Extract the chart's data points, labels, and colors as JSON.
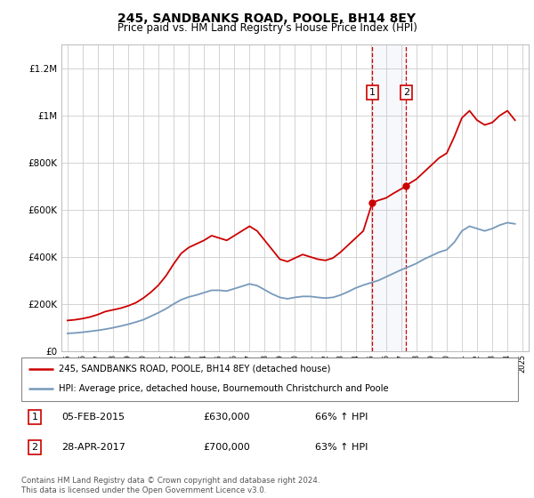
{
  "title": "245, SANDBANKS ROAD, POOLE, BH14 8EY",
  "subtitle": "Price paid vs. HM Land Registry's House Price Index (HPI)",
  "title_fontsize": 10,
  "subtitle_fontsize": 8.5,
  "ylim": [
    0,
    1300000
  ],
  "yticks": [
    0,
    200000,
    400000,
    600000,
    800000,
    1000000,
    1200000
  ],
  "ytick_labels": [
    "£0",
    "£200K",
    "£400K",
    "£600K",
    "£800K",
    "£1M",
    "£1.2M"
  ],
  "background_color": "#ffffff",
  "transactions": [
    {
      "date": 2015.09,
      "price": 630000,
      "label": "1"
    },
    {
      "date": 2017.32,
      "price": 700000,
      "label": "2"
    }
  ],
  "legend_entries": [
    {
      "label": "245, SANDBANKS ROAD, POOLE, BH14 8EY (detached house)",
      "color": "#cc0000"
    },
    {
      "label": "HPI: Average price, detached house, Bournemouth Christchurch and Poole",
      "color": "#7799bb"
    }
  ],
  "table_rows": [
    {
      "num": "1",
      "date": "05-FEB-2015",
      "price": "£630,000",
      "pct": "66% ↑ HPI"
    },
    {
      "num": "2",
      "date": "28-APR-2017",
      "price": "£700,000",
      "pct": "63% ↑ HPI"
    }
  ],
  "footnote": "Contains HM Land Registry data © Crown copyright and database right 2024.\nThis data is licensed under the Open Government Licence v3.0.",
  "red_line_x": [
    1995,
    1995.5,
    1996,
    1996.5,
    1997,
    1997.5,
    1998,
    1998.5,
    1999,
    1999.5,
    2000,
    2000.5,
    2001,
    2001.5,
    2002,
    2002.5,
    2003,
    2003.5,
    2004,
    2004.5,
    2005,
    2005.5,
    2006,
    2006.5,
    2007,
    2007.5,
    2008,
    2008.5,
    2009,
    2009.5,
    2010,
    2010.5,
    2011,
    2011.5,
    2012,
    2012.5,
    2013,
    2013.5,
    2014,
    2014.5,
    2015.09,
    2015.5,
    2016,
    2016.5,
    2017.32,
    2017.5,
    2018,
    2018.5,
    2019,
    2019.5,
    2020,
    2020.5,
    2021,
    2021.5,
    2022,
    2022.5,
    2023,
    2023.5,
    2024,
    2024.5
  ],
  "red_line_y": [
    130000,
    133000,
    138000,
    145000,
    155000,
    168000,
    175000,
    182000,
    192000,
    205000,
    225000,
    250000,
    280000,
    320000,
    370000,
    415000,
    440000,
    455000,
    470000,
    490000,
    480000,
    470000,
    490000,
    510000,
    530000,
    510000,
    470000,
    430000,
    390000,
    380000,
    395000,
    410000,
    400000,
    390000,
    385000,
    395000,
    420000,
    450000,
    480000,
    510000,
    630000,
    640000,
    650000,
    670000,
    700000,
    710000,
    730000,
    760000,
    790000,
    820000,
    840000,
    910000,
    990000,
    1020000,
    980000,
    960000,
    970000,
    1000000,
    1020000,
    980000
  ],
  "blue_line_x": [
    1995,
    1995.5,
    1996,
    1996.5,
    1997,
    1997.5,
    1998,
    1998.5,
    1999,
    1999.5,
    2000,
    2000.5,
    2001,
    2001.5,
    2002,
    2002.5,
    2003,
    2003.5,
    2004,
    2004.5,
    2005,
    2005.5,
    2006,
    2006.5,
    2007,
    2007.5,
    2008,
    2008.5,
    2009,
    2009.5,
    2010,
    2010.5,
    2011,
    2011.5,
    2012,
    2012.5,
    2013,
    2013.5,
    2014,
    2014.5,
    2015,
    2015.5,
    2016,
    2016.5,
    2017,
    2017.5,
    2018,
    2018.5,
    2019,
    2019.5,
    2020,
    2020.5,
    2021,
    2021.5,
    2022,
    2022.5,
    2023,
    2023.5,
    2024,
    2024.5
  ],
  "blue_line_y": [
    75000,
    77000,
    80000,
    84000,
    88000,
    93000,
    99000,
    106000,
    114000,
    123000,
    133000,
    148000,
    163000,
    180000,
    200000,
    218000,
    230000,
    238000,
    248000,
    258000,
    258000,
    255000,
    265000,
    275000,
    285000,
    278000,
    260000,
    242000,
    228000,
    222000,
    228000,
    232000,
    232000,
    228000,
    225000,
    228000,
    238000,
    252000,
    268000,
    280000,
    290000,
    300000,
    315000,
    330000,
    345000,
    358000,
    372000,
    390000,
    405000,
    420000,
    430000,
    462000,
    510000,
    530000,
    520000,
    510000,
    520000,
    535000,
    545000,
    540000
  ]
}
